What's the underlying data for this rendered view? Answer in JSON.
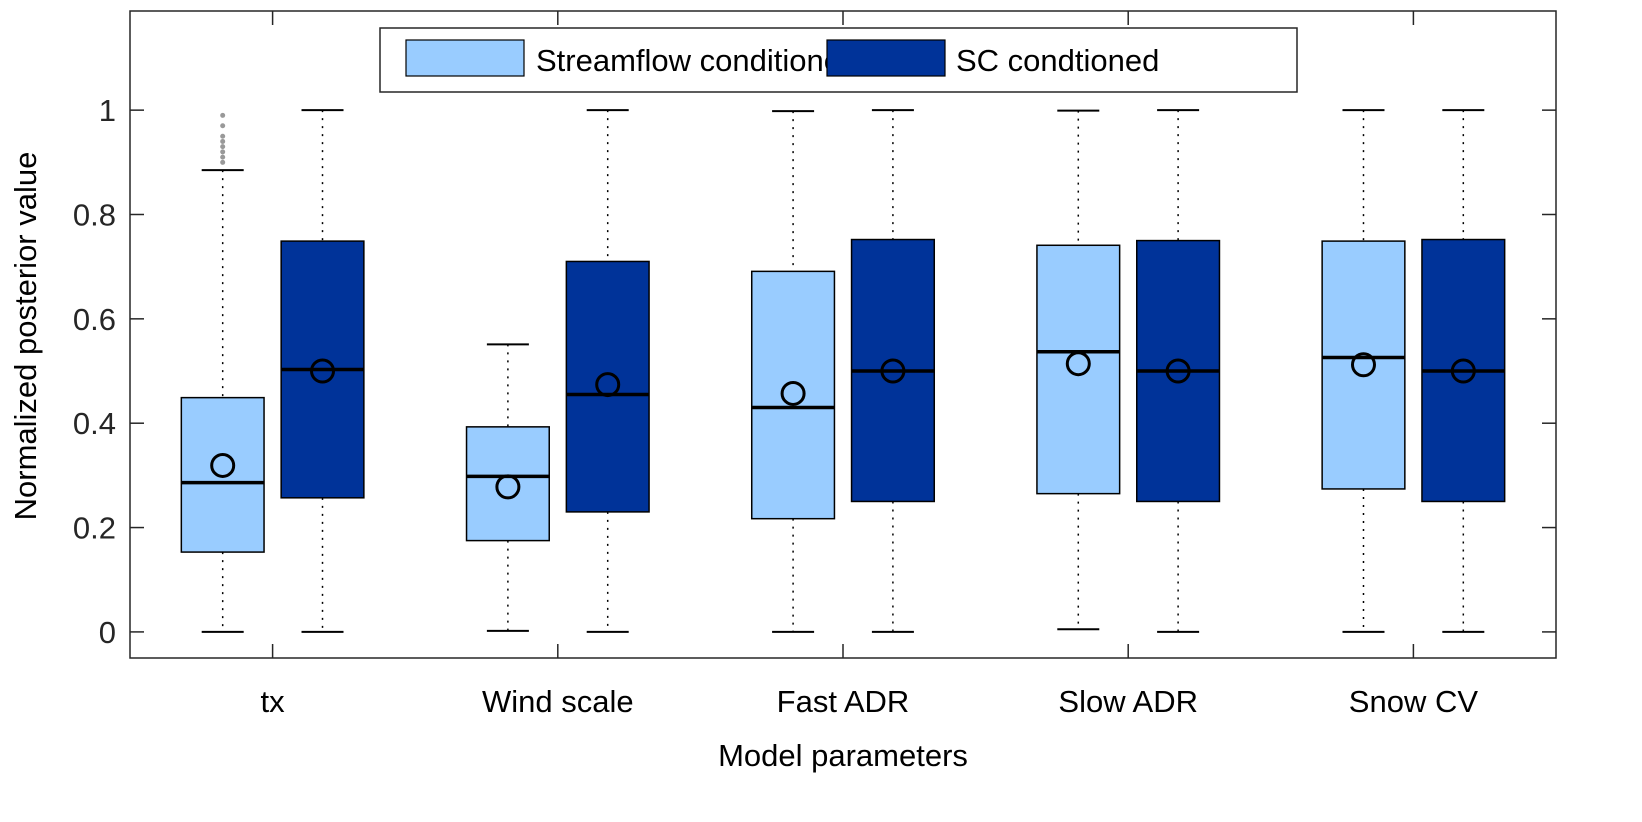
{
  "chart_data": {
    "type": "box",
    "title": "",
    "xlabel": "Model parameters",
    "ylabel": "Normalized posterior value",
    "ylim": [
      -0.05,
      1.19
    ],
    "yticks": [
      "0",
      "0.2",
      "0.4",
      "0.6",
      "0.8",
      "1"
    ],
    "categories": [
      "tx",
      "Wind scale",
      "Fast ADR",
      "Slow ADR",
      "Snow CV"
    ],
    "grid": false,
    "legend_placement": "top-center",
    "series": [
      {
        "name": "Streamflow conditioned",
        "color": "#99ccff",
        "boxes": [
          {
            "min": 0,
            "q1": 0.153,
            "median": 0.286,
            "q3": 0.449,
            "max": 0.885,
            "mean": 0.319,
            "outliers": [
              0.9,
              0.91,
              0.92,
              0.93,
              0.94,
              0.95,
              0.97,
              0.99
            ]
          },
          {
            "min": 0.002,
            "q1": 0.175,
            "median": 0.298,
            "q3": 0.393,
            "max": 0.551,
            "mean": 0.278,
            "outliers": []
          },
          {
            "min": 0,
            "q1": 0.217,
            "median": 0.43,
            "q3": 0.691,
            "max": 0.998,
            "mean": 0.457,
            "outliers": []
          },
          {
            "min": 0.005,
            "q1": 0.265,
            "median": 0.537,
            "q3": 0.741,
            "max": 0.999,
            "mean": 0.514,
            "outliers": []
          },
          {
            "min": 0,
            "q1": 0.274,
            "median": 0.526,
            "q3": 0.749,
            "max": 1,
            "mean": 0.512,
            "outliers": []
          }
        ]
      },
      {
        "name": "SC condtioned",
        "color": "#003399",
        "boxes": [
          {
            "min": 0,
            "q1": 0.257,
            "median": 0.503,
            "q3": 0.749,
            "max": 1,
            "mean": 0.5,
            "outliers": []
          },
          {
            "min": 0,
            "q1": 0.23,
            "median": 0.455,
            "q3": 0.71,
            "max": 1,
            "mean": 0.474,
            "outliers": []
          },
          {
            "min": 0,
            "q1": 0.25,
            "median": 0.5,
            "q3": 0.752,
            "max": 1,
            "mean": 0.5,
            "outliers": []
          },
          {
            "min": 0,
            "q1": 0.25,
            "median": 0.5,
            "q3": 0.75,
            "max": 1,
            "mean": 0.5,
            "outliers": []
          },
          {
            "min": 0,
            "q1": 0.25,
            "median": 0.5,
            "q3": 0.752,
            "max": 1,
            "mean": 0.5,
            "outliers": []
          }
        ]
      }
    ]
  }
}
